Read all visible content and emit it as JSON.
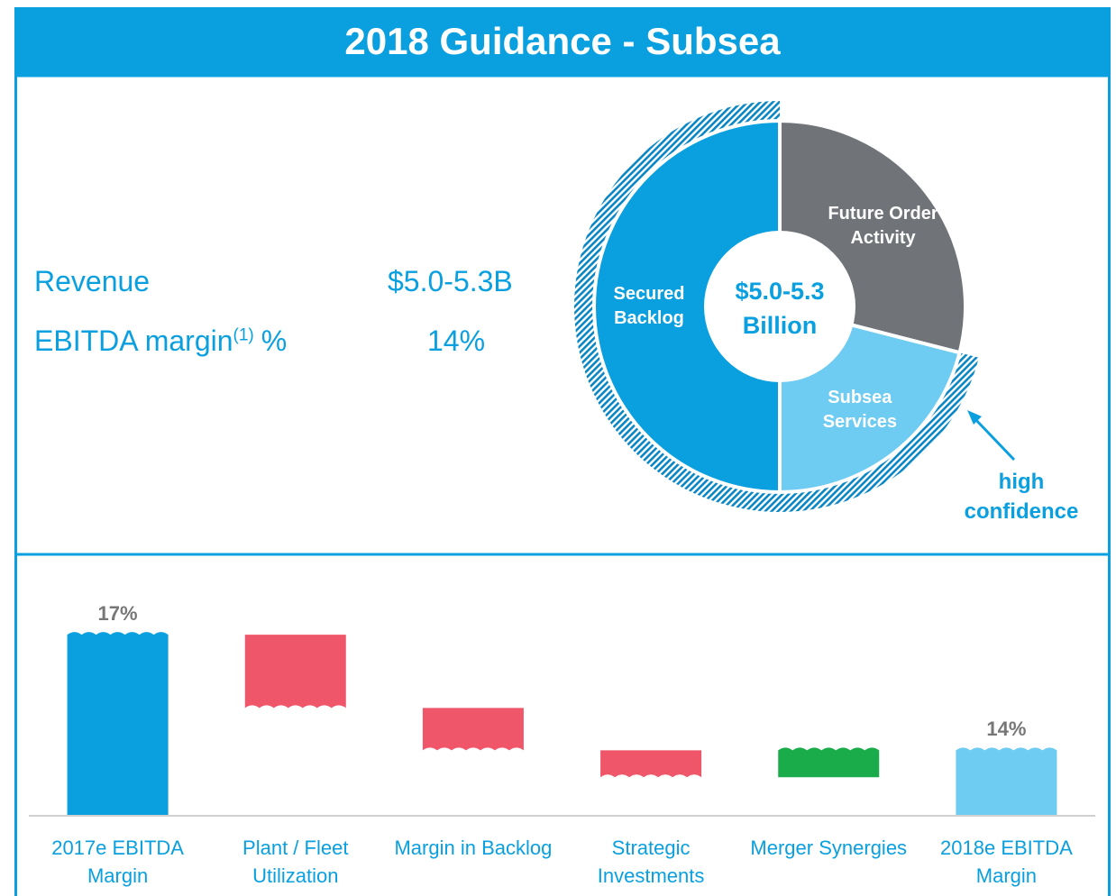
{
  "header": {
    "title": "2018 Guidance - Subsea"
  },
  "guidance": [
    {
      "label": "Revenue",
      "value": "$5.0-5.3B"
    },
    {
      "label": "EBITDA margin",
      "footnote": "(1)",
      "unit": "%",
      "value": "14%"
    }
  ],
  "chart_data": [
    {
      "type": "donut",
      "center_label": "$5.0-5.3 Billion",
      "series": [
        {
          "name": "Future Order Activity",
          "value": 29,
          "color": "#707479",
          "hatched": false
        },
        {
          "name": "Subsea Services",
          "value": 21,
          "color": "#6ecbf2",
          "hatched": true
        },
        {
          "name": "Secured Backlog",
          "value": 50,
          "color": "#0aa0e0",
          "hatched": true
        }
      ],
      "annotation": "high confidence"
    },
    {
      "type": "waterfall",
      "categories": [
        "2017e EBITDA Margin",
        "Plant / Fleet Utilization",
        "Margin in Backlog",
        "Strategic Investments",
        "Merger Synergies",
        "2018e EBITDA Margin"
      ],
      "values": [
        17,
        -1.9,
        -1.1,
        -0.7,
        0.7,
        14
      ],
      "value_labels": [
        "17%",
        null,
        null,
        null,
        null,
        "14%"
      ],
      "measures": [
        "total",
        "relative",
        "relative",
        "relative",
        "relative",
        "total"
      ],
      "colors": {
        "start": "#0aa0e0",
        "decrease": "#f0566a",
        "increase": "#1aab4a",
        "end": "#6ecbf2"
      },
      "ylim": [
        12.3,
        18.5
      ],
      "axis_break": true
    }
  ]
}
